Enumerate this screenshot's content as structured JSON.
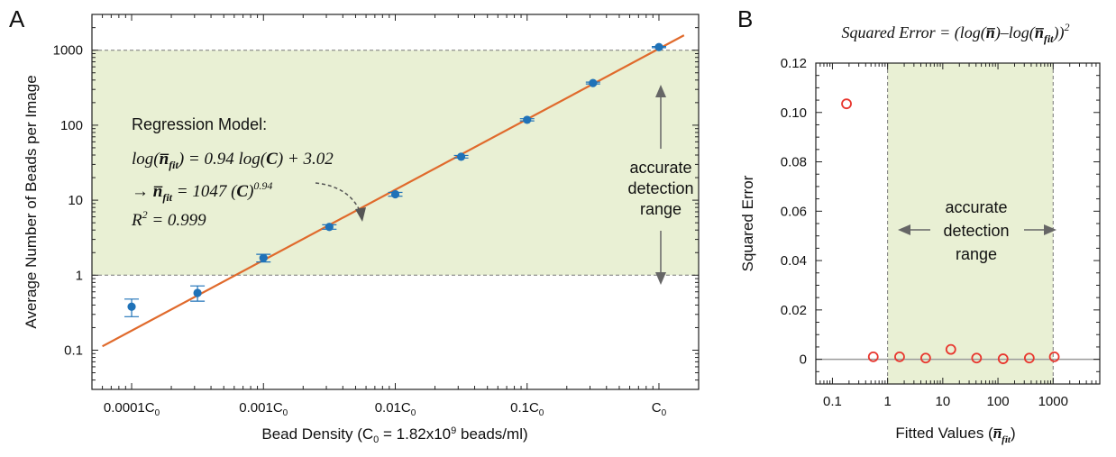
{
  "chart_data": [
    {
      "panel_label": "A",
      "type": "scatter",
      "scale": "log-log",
      "xlabel": "Bead Density (C",
      "xlabel_sub": "0",
      "xlabel_rest": " = 1.82x10",
      "xlabel_sup": "9",
      "xlabel_end": " beads/ml)",
      "ylabel": "Average Number of Beads per Image",
      "xlim": [
        5e-05,
        2
      ],
      "ylim": [
        0.03,
        3000
      ],
      "x_ticks": [
        {
          "value": 0.0001,
          "label": "0.0001C",
          "sub": "0"
        },
        {
          "value": 0.001,
          "label": "0.001C",
          "sub": "0"
        },
        {
          "value": 0.01,
          "label": "0.01C",
          "sub": "0"
        },
        {
          "value": 0.1,
          "label": "0.1C",
          "sub": "0"
        },
        {
          "value": 1,
          "label": "C",
          "sub": "0"
        }
      ],
      "y_ticks": [
        {
          "value": 0.1,
          "label": "0.1"
        },
        {
          "value": 1,
          "label": "1"
        },
        {
          "value": 10,
          "label": "10"
        },
        {
          "value": 100,
          "label": "100"
        },
        {
          "value": 1000,
          "label": "1000"
        }
      ],
      "series": [
        {
          "color": "#1f72b8",
          "points": [
            {
              "x": 0.0001,
              "y": 0.38,
              "lo": 0.28,
              "hi": 0.48
            },
            {
              "x": 0.000316,
              "y": 0.58,
              "lo": 0.45,
              "hi": 0.72
            },
            {
              "x": 0.001,
              "y": 1.7,
              "lo": 1.5,
              "hi": 1.9
            },
            {
              "x": 0.00316,
              "y": 4.4,
              "lo": 4.1,
              "hi": 4.7
            },
            {
              "x": 0.01,
              "y": 12,
              "lo": 11.3,
              "hi": 12.7
            },
            {
              "x": 0.0316,
              "y": 38,
              "lo": 36.5,
              "hi": 39.5
            },
            {
              "x": 0.1,
              "y": 118,
              "lo": 114,
              "hi": 122
            },
            {
              "x": 0.316,
              "y": 365,
              "lo": 355,
              "hi": 375
            },
            {
              "x": 1,
              "y": 1100,
              "lo": 1080,
              "hi": 1120
            }
          ]
        }
      ],
      "fit_line": {
        "color": "#e06a2c",
        "x_start": 6e-05,
        "x_end": 1.55,
        "slope": 0.94,
        "intercept_log10": 3.02
      },
      "shaded_range": {
        "y_min": 1,
        "y_max": 1000,
        "color": "#e9f0d4"
      },
      "annotations": {
        "title": "Regression Model:",
        "eq1_a": "log(",
        "eq1_nbar": "n̅",
        "eq1_sub": "fit",
        "eq1_b": ") = 0.94 log(",
        "eq1_c": "C",
        "eq1_d": ") + 3.02",
        "eq2_arrow": "→ ",
        "eq2_nbar": "n̅",
        "eq2_sub": "fit",
        "eq2_a": " = 1047 (",
        "eq2_c": "C",
        "eq2_b": ")",
        "eq2_sup": "0.94",
        "r2_a": "R",
        "r2_sup": "2",
        "r2_b": " = 0.999",
        "range_line1": "accurate",
        "range_line2": "detection",
        "range_line3": "range"
      }
    },
    {
      "panel_label": "B",
      "type": "scatter",
      "scale": "log-x",
      "title_a": "Squared Error = (log(",
      "title_nbar": "n̅",
      "title_b": ")–log(",
      "title_nbar2": "n̅",
      "title_sub": "fit",
      "title_c": "))",
      "title_sup": "2",
      "xlabel": "Fitted Values (",
      "xlabel_nbar": "n̅",
      "xlabel_sub": "fit",
      "xlabel_end": ")",
      "ylabel": "Squared Error",
      "xlim": [
        0.05,
        7000
      ],
      "ylim": [
        -0.01,
        0.12
      ],
      "x_ticks": [
        {
          "value": 0.1,
          "label": "0.1"
        },
        {
          "value": 1,
          "label": "1"
        },
        {
          "value": 10,
          "label": "10"
        },
        {
          "value": 100,
          "label": "100"
        },
        {
          "value": 1000,
          "label": "1000"
        }
      ],
      "y_ticks": [
        {
          "value": 0,
          "label": "0"
        },
        {
          "value": 0.02,
          "label": "0.02"
        },
        {
          "value": 0.04,
          "label": "0.04"
        },
        {
          "value": 0.06,
          "label": "0.06"
        },
        {
          "value": 0.08,
          "label": "0.08"
        },
        {
          "value": 0.1,
          "label": "0.10"
        },
        {
          "value": 0.12,
          "label": "0.12"
        }
      ],
      "series": [
        {
          "color": "#e8362e",
          "points": [
            {
              "x": 0.18,
              "y": 0.1035
            },
            {
              "x": 0.55,
              "y": 0.001
            },
            {
              "x": 1.65,
              "y": 0.001
            },
            {
              "x": 4.9,
              "y": 0.0005
            },
            {
              "x": 14,
              "y": 0.004
            },
            {
              "x": 41,
              "y": 0.0005
            },
            {
              "x": 124,
              "y": 0.0002
            },
            {
              "x": 370,
              "y": 0.0005
            },
            {
              "x": 1050,
              "y": 0.001
            }
          ]
        }
      ],
      "shaded_range": {
        "x_min": 1,
        "x_max": 1000,
        "color": "#e9f0d4"
      },
      "annotations": {
        "range_line1": "accurate",
        "range_line2": "detection",
        "range_line3": "range"
      }
    }
  ]
}
